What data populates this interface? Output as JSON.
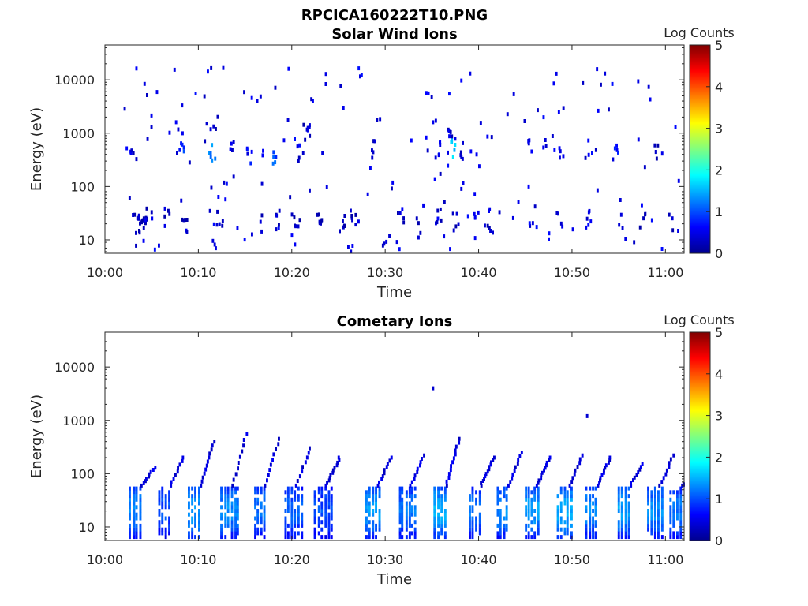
{
  "figure_title": "RPCICA160222T10.PNG",
  "colors": {
    "axis": "#262626",
    "title": "#000000"
  },
  "colormap": "jet",
  "chart_data": [
    {
      "type": "heatmap",
      "title": "Solar Wind Ions",
      "xlabel": "Time",
      "ylabel": "Energy (eV)",
      "x_ticks": [
        "10:00",
        "10:10",
        "10:20",
        "10:30",
        "10:40",
        "10:50",
        "11:00"
      ],
      "y_ticks": [
        "10",
        "100",
        "1000",
        "10000"
      ],
      "y_scale": "log",
      "xlim": [
        "10:00",
        "11:02"
      ],
      "ylim": [
        5.6,
        45000
      ],
      "colorbar": {
        "label": "Log Counts",
        "ticks": [
          "0",
          "1",
          "2",
          "3",
          "4",
          "5"
        ],
        "range": [
          0,
          5
        ]
      },
      "clusters": [
        {
          "t": 3.2,
          "e": 20,
          "v": 0.5
        },
        {
          "t": 3.6,
          "e": 18,
          "v": 0.5
        },
        {
          "t": 4.2,
          "e": 22,
          "v": 0.4
        },
        {
          "t": 4.6,
          "e": 28,
          "v": 0.6
        },
        {
          "t": 6.5,
          "e": 25,
          "v": 0.5
        },
        {
          "t": 8.3,
          "e": 18,
          "v": 0.4
        },
        {
          "t": 11.8,
          "e": 8,
          "v": 0.5
        },
        {
          "t": 12.3,
          "e": 25,
          "v": 0.5
        },
        {
          "t": 16.3,
          "e": 20,
          "v": 0.5
        },
        {
          "t": 18.5,
          "e": 25,
          "v": 0.5
        },
        {
          "t": 20.5,
          "e": 20,
          "v": 0.4
        },
        {
          "t": 23,
          "e": 25,
          "v": 0.5
        },
        {
          "t": 25.2,
          "e": 20,
          "v": 0.5
        },
        {
          "t": 26.5,
          "e": 25,
          "v": 0.4
        },
        {
          "t": 30,
          "e": 9,
          "v": 0.5
        },
        {
          "t": 31.5,
          "e": 25,
          "v": 0.5
        },
        {
          "t": 33.5,
          "e": 20,
          "v": 0.5
        },
        {
          "t": 35.5,
          "e": 25,
          "v": 0.6
        },
        {
          "t": 37.5,
          "e": 22,
          "v": 0.5
        },
        {
          "t": 39.5,
          "e": 25,
          "v": 0.6
        },
        {
          "t": 41,
          "e": 20,
          "v": 0.5
        },
        {
          "t": 45.5,
          "e": 25,
          "v": 0.7
        },
        {
          "t": 48.5,
          "e": 25,
          "v": 0.7
        },
        {
          "t": 51.5,
          "e": 25,
          "v": 0.7
        },
        {
          "t": 55,
          "e": 25,
          "v": 0.6
        },
        {
          "t": 57.5,
          "e": 25,
          "v": 0.5
        },
        {
          "t": 60.5,
          "e": 22,
          "v": 0.6
        },
        {
          "t": 3.0,
          "e": 400,
          "v": 0.6
        },
        {
          "t": 8.1,
          "e": 450,
          "v": 1.1
        },
        {
          "t": 11.3,
          "e": 450,
          "v": 1.5
        },
        {
          "t": 11.5,
          "e": 1000,
          "v": 0.6
        },
        {
          "t": 13.5,
          "e": 450,
          "v": 0.6
        },
        {
          "t": 15.3,
          "e": 400,
          "v": 0.8
        },
        {
          "t": 17.9,
          "e": 350,
          "v": 1.2
        },
        {
          "t": 20.8,
          "e": 400,
          "v": 0.7
        },
        {
          "t": 21.5,
          "e": 1050,
          "v": 0.5
        },
        {
          "t": 28.5,
          "e": 500,
          "v": 0.5
        },
        {
          "t": 35.5,
          "e": 500,
          "v": 0.8
        },
        {
          "t": 37.2,
          "e": 500,
          "v": 1.8
        },
        {
          "t": 37.0,
          "e": 1050,
          "v": 0.6
        },
        {
          "t": 38.3,
          "e": 450,
          "v": 0.6
        },
        {
          "t": 45.5,
          "e": 500,
          "v": 0.7
        },
        {
          "t": 48.7,
          "e": 450,
          "v": 0.6
        },
        {
          "t": 51.5,
          "e": 500,
          "v": 0.7
        },
        {
          "t": 54.6,
          "e": 450,
          "v": 0.8
        },
        {
          "t": 58.7,
          "e": 450,
          "v": 0.5
        }
      ],
      "scatter_density": 180,
      "scatter_erange": [
        6,
        17000
      ],
      "seed": 17
    },
    {
      "type": "heatmap",
      "title": "Cometary Ions",
      "xlabel": "Time",
      "ylabel": "Energy (eV)",
      "x_ticks": [
        "10:00",
        "10:10",
        "10:20",
        "10:30",
        "10:40",
        "10:50",
        "11:00"
      ],
      "y_ticks": [
        "10",
        "100",
        "1000",
        "10000"
      ],
      "y_scale": "log",
      "xlim": [
        "10:00",
        "11:02"
      ],
      "ylim": [
        5.6,
        45000
      ],
      "colorbar": {
        "label": "Log Counts",
        "ticks": [
          "0",
          "1",
          "2",
          "3",
          "4",
          "5"
        ],
        "range": [
          0,
          5
        ]
      },
      "plumes": [
        {
          "t": 3.2,
          "peak": 130,
          "v": 1.3
        },
        {
          "t": 6.3,
          "peak": 200,
          "v": 1.0
        },
        {
          "t": 9.5,
          "peak": 400,
          "v": 1.4
        },
        {
          "t": 13.0,
          "peak": 550,
          "v": 1.3
        },
        {
          "t": 16.5,
          "peak": 450,
          "v": 1.2
        },
        {
          "t": 19.8,
          "peak": 300,
          "v": 1.1
        },
        {
          "t": 23.0,
          "peak": 200,
          "v": 1.0
        },
        {
          "t": 28.5,
          "peak": 200,
          "v": 1.4
        },
        {
          "t": 32.0,
          "peak": 220,
          "v": 1.2
        },
        {
          "t": 35.8,
          "peak": 450,
          "v": 1.5
        },
        {
          "t": 39.5,
          "peak": 200,
          "v": 1.2
        },
        {
          "t": 42.5,
          "peak": 250,
          "v": 1.3
        },
        {
          "t": 45.5,
          "peak": 200,
          "v": 1.4
        },
        {
          "t": 49.0,
          "peak": 220,
          "v": 1.5
        },
        {
          "t": 52.0,
          "peak": 200,
          "v": 1.3
        },
        {
          "t": 55.5,
          "peak": 150,
          "v": 1.4
        },
        {
          "t": 58.7,
          "peak": 220,
          "v": 1.3
        },
        {
          "t": 61.0,
          "peak": 80,
          "v": 1.2
        }
      ],
      "outliers": [
        {
          "t": 35,
          "e": 4000,
          "v": 0.4
        },
        {
          "t": 51.5,
          "e": 1200,
          "v": 0.4
        }
      ],
      "seed": 53
    }
  ]
}
